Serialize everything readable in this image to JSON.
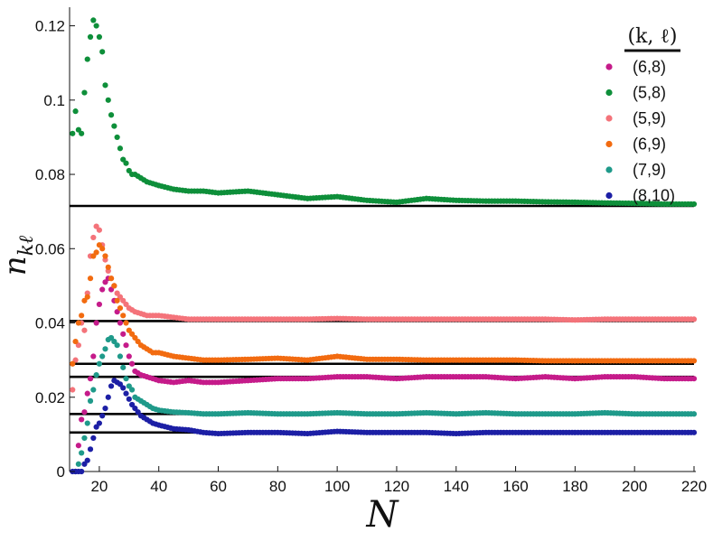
{
  "chart_data": {
    "type": "scatter",
    "xlabel": "N",
    "ylabel": "n",
    "ylabel_sub": "kℓ",
    "xlim": [
      10,
      220
    ],
    "ylim": [
      0,
      0.125
    ],
    "x_ticks": [
      20,
      40,
      60,
      80,
      100,
      120,
      140,
      160,
      180,
      200,
      220
    ],
    "x_tick_labels": [
      "20",
      "40",
      "60",
      "80",
      "100",
      "120",
      "140",
      "160",
      "180",
      "200",
      "220"
    ],
    "y_ticks": [
      0,
      0.02,
      0.04,
      0.06,
      0.08,
      0.1,
      0.12
    ],
    "y_tick_labels": [
      "0",
      "0.02",
      "0.04",
      "0.06",
      "0.08",
      "0.1",
      "0.12"
    ],
    "legend_title": "(k, ℓ)",
    "legend_position": "top-right",
    "series": [
      {
        "name": "(6,8)",
        "color": "#c51b8a",
        "asymptote": 0.0255,
        "points": [
          [
            12,
            0.0
          ],
          [
            13,
            0.007
          ],
          [
            14,
            0.014
          ],
          [
            15,
            0.016
          ],
          [
            16,
            0.021
          ],
          [
            17,
            0.025
          ],
          [
            18,
            0.031
          ],
          [
            19,
            0.04
          ],
          [
            20,
            0.045
          ],
          [
            21,
            0.049
          ],
          [
            22,
            0.051
          ],
          [
            23,
            0.052
          ],
          [
            24,
            0.049
          ],
          [
            25,
            0.046
          ],
          [
            26,
            0.043
          ],
          [
            27,
            0.04
          ],
          [
            28,
            0.037
          ],
          [
            29,
            0.034
          ],
          [
            30,
            0.031
          ],
          [
            31,
            0.029
          ],
          [
            32,
            0.027
          ],
          [
            34,
            0.026
          ],
          [
            36,
            0.0255
          ],
          [
            38,
            0.025
          ],
          [
            40,
            0.0245
          ],
          [
            45,
            0.024
          ],
          [
            50,
            0.0245
          ],
          [
            55,
            0.024
          ],
          [
            60,
            0.024
          ],
          [
            70,
            0.0245
          ],
          [
            80,
            0.025
          ],
          [
            90,
            0.025
          ],
          [
            100,
            0.0255
          ],
          [
            110,
            0.0255
          ],
          [
            120,
            0.025
          ],
          [
            130,
            0.0255
          ],
          [
            140,
            0.0255
          ],
          [
            150,
            0.0255
          ],
          [
            160,
            0.025
          ],
          [
            170,
            0.0255
          ],
          [
            180,
            0.025
          ],
          [
            190,
            0.0255
          ],
          [
            200,
            0.0255
          ],
          [
            210,
            0.025
          ],
          [
            220,
            0.025
          ]
        ]
      },
      {
        "name": "(5,8)",
        "color": "#0e8f3a",
        "asymptote": 0.0715,
        "points": [
          [
            11,
            0.091
          ],
          [
            12,
            0.097
          ],
          [
            13,
            0.092
          ],
          [
            14,
            0.091
          ],
          [
            15,
            0.102
          ],
          [
            16,
            0.111
          ],
          [
            17,
            0.117
          ],
          [
            18,
            0.1215
          ],
          [
            19,
            0.12
          ],
          [
            20,
            0.117
          ],
          [
            21,
            0.113
          ],
          [
            22,
            0.104
          ],
          [
            23,
            0.1
          ],
          [
            24,
            0.096
          ],
          [
            25,
            0.093
          ],
          [
            26,
            0.09
          ],
          [
            27,
            0.087
          ],
          [
            28,
            0.084
          ],
          [
            29,
            0.083
          ],
          [
            30,
            0.081
          ],
          [
            31,
            0.08
          ],
          [
            32,
            0.08
          ],
          [
            34,
            0.079
          ],
          [
            36,
            0.078
          ],
          [
            38,
            0.0775
          ],
          [
            40,
            0.077
          ],
          [
            45,
            0.076
          ],
          [
            50,
            0.0755
          ],
          [
            55,
            0.0755
          ],
          [
            60,
            0.075
          ],
          [
            70,
            0.0755
          ],
          [
            80,
            0.0745
          ],
          [
            90,
            0.0735
          ],
          [
            100,
            0.074
          ],
          [
            110,
            0.073
          ],
          [
            120,
            0.0725
          ],
          [
            130,
            0.0735
          ],
          [
            140,
            0.073
          ],
          [
            150,
            0.0728
          ],
          [
            160,
            0.0728
          ],
          [
            170,
            0.0726
          ],
          [
            180,
            0.0725
          ],
          [
            190,
            0.0723
          ],
          [
            200,
            0.0722
          ],
          [
            210,
            0.072
          ],
          [
            220,
            0.072
          ]
        ]
      },
      {
        "name": "(5,9)",
        "color": "#f4737a",
        "asymptote": 0.0405,
        "points": [
          [
            11,
            0.022
          ],
          [
            12,
            0.03
          ],
          [
            13,
            0.034
          ],
          [
            14,
            0.04
          ],
          [
            15,
            0.038
          ],
          [
            16,
            0.048
          ],
          [
            17,
            0.058
          ],
          [
            18,
            0.063
          ],
          [
            19,
            0.066
          ],
          [
            20,
            0.065
          ],
          [
            21,
            0.061
          ],
          [
            22,
            0.057
          ],
          [
            23,
            0.054
          ],
          [
            24,
            0.052
          ],
          [
            25,
            0.05
          ],
          [
            26,
            0.048
          ],
          [
            27,
            0.047
          ],
          [
            28,
            0.046
          ],
          [
            29,
            0.045
          ],
          [
            30,
            0.044
          ],
          [
            32,
            0.043
          ],
          [
            34,
            0.0425
          ],
          [
            36,
            0.042
          ],
          [
            40,
            0.042
          ],
          [
            45,
            0.0415
          ],
          [
            50,
            0.041
          ],
          [
            55,
            0.041
          ],
          [
            60,
            0.041
          ],
          [
            70,
            0.041
          ],
          [
            80,
            0.041
          ],
          [
            90,
            0.041
          ],
          [
            100,
            0.0412
          ],
          [
            110,
            0.041
          ],
          [
            120,
            0.041
          ],
          [
            130,
            0.041
          ],
          [
            140,
            0.041
          ],
          [
            150,
            0.041
          ],
          [
            160,
            0.041
          ],
          [
            170,
            0.041
          ],
          [
            180,
            0.0408
          ],
          [
            190,
            0.041
          ],
          [
            200,
            0.041
          ],
          [
            210,
            0.041
          ],
          [
            220,
            0.041
          ]
        ]
      },
      {
        "name": "(6,9)",
        "color": "#f26b10",
        "asymptote": 0.029,
        "points": [
          [
            11,
            0.029
          ],
          [
            12,
            0.035
          ],
          [
            13,
            0.04
          ],
          [
            14,
            0.042
          ],
          [
            15,
            0.046
          ],
          [
            16,
            0.047
          ],
          [
            17,
            0.052
          ],
          [
            18,
            0.058
          ],
          [
            19,
            0.059
          ],
          [
            20,
            0.061
          ],
          [
            21,
            0.06
          ],
          [
            22,
            0.058
          ],
          [
            23,
            0.055
          ],
          [
            24,
            0.052
          ],
          [
            25,
            0.05
          ],
          [
            26,
            0.046
          ],
          [
            27,
            0.044
          ],
          [
            28,
            0.042
          ],
          [
            29,
            0.04
          ],
          [
            30,
            0.038
          ],
          [
            32,
            0.036
          ],
          [
            34,
            0.034
          ],
          [
            36,
            0.033
          ],
          [
            38,
            0.032
          ],
          [
            40,
            0.032
          ],
          [
            45,
            0.031
          ],
          [
            50,
            0.0305
          ],
          [
            55,
            0.03
          ],
          [
            60,
            0.03
          ],
          [
            70,
            0.0302
          ],
          [
            80,
            0.0305
          ],
          [
            90,
            0.03
          ],
          [
            100,
            0.031
          ],
          [
            110,
            0.0302
          ],
          [
            120,
            0.0302
          ],
          [
            130,
            0.03
          ],
          [
            140,
            0.03
          ],
          [
            150,
            0.03
          ],
          [
            160,
            0.03
          ],
          [
            170,
            0.0298
          ],
          [
            180,
            0.0298
          ],
          [
            190,
            0.0298
          ],
          [
            200,
            0.0298
          ],
          [
            210,
            0.0298
          ],
          [
            220,
            0.0298
          ]
        ]
      },
      {
        "name": "(7,9)",
        "color": "#1f9a8a",
        "asymptote": 0.0155,
        "points": [
          [
            12,
            0.0
          ],
          [
            13,
            0.002
          ],
          [
            14,
            0.005
          ],
          [
            15,
            0.009
          ],
          [
            16,
            0.013
          ],
          [
            17,
            0.019
          ],
          [
            18,
            0.022
          ],
          [
            19,
            0.026
          ],
          [
            20,
            0.029
          ],
          [
            21,
            0.031
          ],
          [
            22,
            0.033
          ],
          [
            23,
            0.0355
          ],
          [
            24,
            0.036
          ],
          [
            25,
            0.035
          ],
          [
            26,
            0.034
          ],
          [
            27,
            0.031
          ],
          [
            28,
            0.028
          ],
          [
            29,
            0.025
          ],
          [
            30,
            0.023
          ],
          [
            31,
            0.022
          ],
          [
            32,
            0.02
          ],
          [
            34,
            0.019
          ],
          [
            36,
            0.018
          ],
          [
            38,
            0.017
          ],
          [
            40,
            0.0165
          ],
          [
            45,
            0.016
          ],
          [
            50,
            0.0158
          ],
          [
            55,
            0.0155
          ],
          [
            60,
            0.0155
          ],
          [
            70,
            0.0158
          ],
          [
            80,
            0.0155
          ],
          [
            90,
            0.0155
          ],
          [
            100,
            0.0158
          ],
          [
            110,
            0.0155
          ],
          [
            120,
            0.0155
          ],
          [
            130,
            0.0158
          ],
          [
            140,
            0.0155
          ],
          [
            150,
            0.0158
          ],
          [
            160,
            0.0155
          ],
          [
            170,
            0.0155
          ],
          [
            180,
            0.0155
          ],
          [
            190,
            0.0158
          ],
          [
            200,
            0.0155
          ],
          [
            210,
            0.0155
          ],
          [
            220,
            0.0155
          ]
        ]
      },
      {
        "name": "(8,10)",
        "color": "#1c1fa5",
        "asymptote": 0.0105,
        "points": [
          [
            11,
            0.0
          ],
          [
            12,
            0.0
          ],
          [
            13,
            0.0
          ],
          [
            14,
            0.0
          ],
          [
            15,
            0.002
          ],
          [
            16,
            0.003
          ],
          [
            17,
            0.006
          ],
          [
            18,
            0.009
          ],
          [
            19,
            0.012
          ],
          [
            20,
            0.013
          ],
          [
            21,
            0.015
          ],
          [
            22,
            0.017
          ],
          [
            23,
            0.02
          ],
          [
            24,
            0.023
          ],
          [
            25,
            0.0245
          ],
          [
            26,
            0.024
          ],
          [
            27,
            0.0235
          ],
          [
            28,
            0.0225
          ],
          [
            29,
            0.021
          ],
          [
            30,
            0.0195
          ],
          [
            31,
            0.018
          ],
          [
            32,
            0.017
          ],
          [
            34,
            0.015
          ],
          [
            36,
            0.014
          ],
          [
            38,
            0.013
          ],
          [
            40,
            0.0125
          ],
          [
            45,
            0.0115
          ],
          [
            50,
            0.0112
          ],
          [
            55,
            0.0105
          ],
          [
            60,
            0.0102
          ],
          [
            70,
            0.0105
          ],
          [
            80,
            0.0105
          ],
          [
            90,
            0.0102
          ],
          [
            100,
            0.0108
          ],
          [
            110,
            0.0105
          ],
          [
            120,
            0.0105
          ],
          [
            130,
            0.0105
          ],
          [
            140,
            0.0102
          ],
          [
            150,
            0.0105
          ],
          [
            160,
            0.0105
          ],
          [
            170,
            0.0105
          ],
          [
            180,
            0.0105
          ],
          [
            190,
            0.0105
          ],
          [
            200,
            0.0105
          ],
          [
            210,
            0.0105
          ],
          [
            220,
            0.0105
          ]
        ]
      }
    ]
  }
}
